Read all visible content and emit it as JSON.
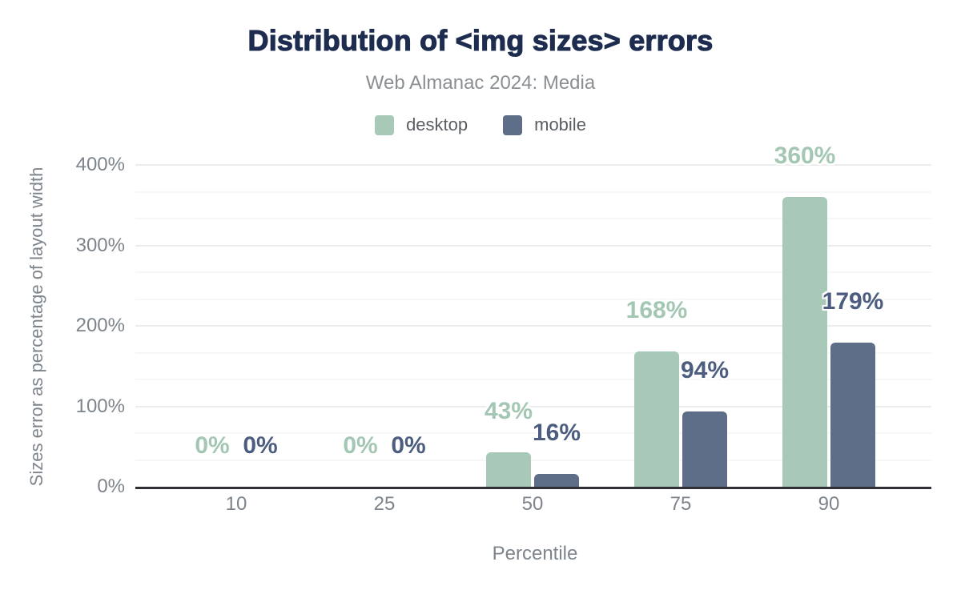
{
  "header": {
    "title": "Distribution of <img sizes> errors",
    "subtitle": "Web Almanac 2024: Media"
  },
  "colors": {
    "title": "#1d2c4f",
    "subtitle_text": "#8a8f93",
    "axis_text": "#7d848b",
    "axis_line": "#2f3036",
    "gridline_major": "#ececec",
    "gridline_minor": "#f7f7f7",
    "desktop": "#a8c9b8",
    "mobile": "#5f6e88",
    "desktop_label": "#a4c7b3",
    "mobile_label": "#4c5d7f"
  },
  "chart_data": {
    "type": "bar",
    "title": "Distribution of <img sizes> errors",
    "subtitle": "Web Almanac 2024: Media",
    "categories": [
      "10",
      "25",
      "50",
      "75",
      "90"
    ],
    "series": [
      {
        "name": "desktop",
        "color": "#a8c9b8",
        "label_color": "#a4c7b3",
        "values": [
          0,
          0,
          43,
          168,
          360
        ]
      },
      {
        "name": "mobile",
        "color": "#5f6e88",
        "label_color": "#4c5d7f",
        "values": [
          0,
          0,
          16,
          94,
          179
        ]
      }
    ],
    "data_labels": [
      [
        "0%",
        "0%",
        "43%",
        "168%",
        "360%"
      ],
      [
        "0%",
        "0%",
        "16%",
        "94%",
        "179%"
      ]
    ],
    "xlabel": "Percentile",
    "ylabel": "Sizes error as percentage of layout width",
    "ylim": [
      0,
      400
    ],
    "yticks": [
      "0%",
      "100%",
      "200%",
      "300%",
      "400%"
    ],
    "ytick_values": [
      0,
      100,
      200,
      300,
      400
    ],
    "minor_grid_step": 33.333,
    "grid": "horizontal major + minor",
    "legend_position": "top-center"
  },
  "legend": {
    "items": [
      {
        "label": "desktop",
        "color": "#a8c9b8"
      },
      {
        "label": "mobile",
        "color": "#5f6e88"
      }
    ]
  }
}
